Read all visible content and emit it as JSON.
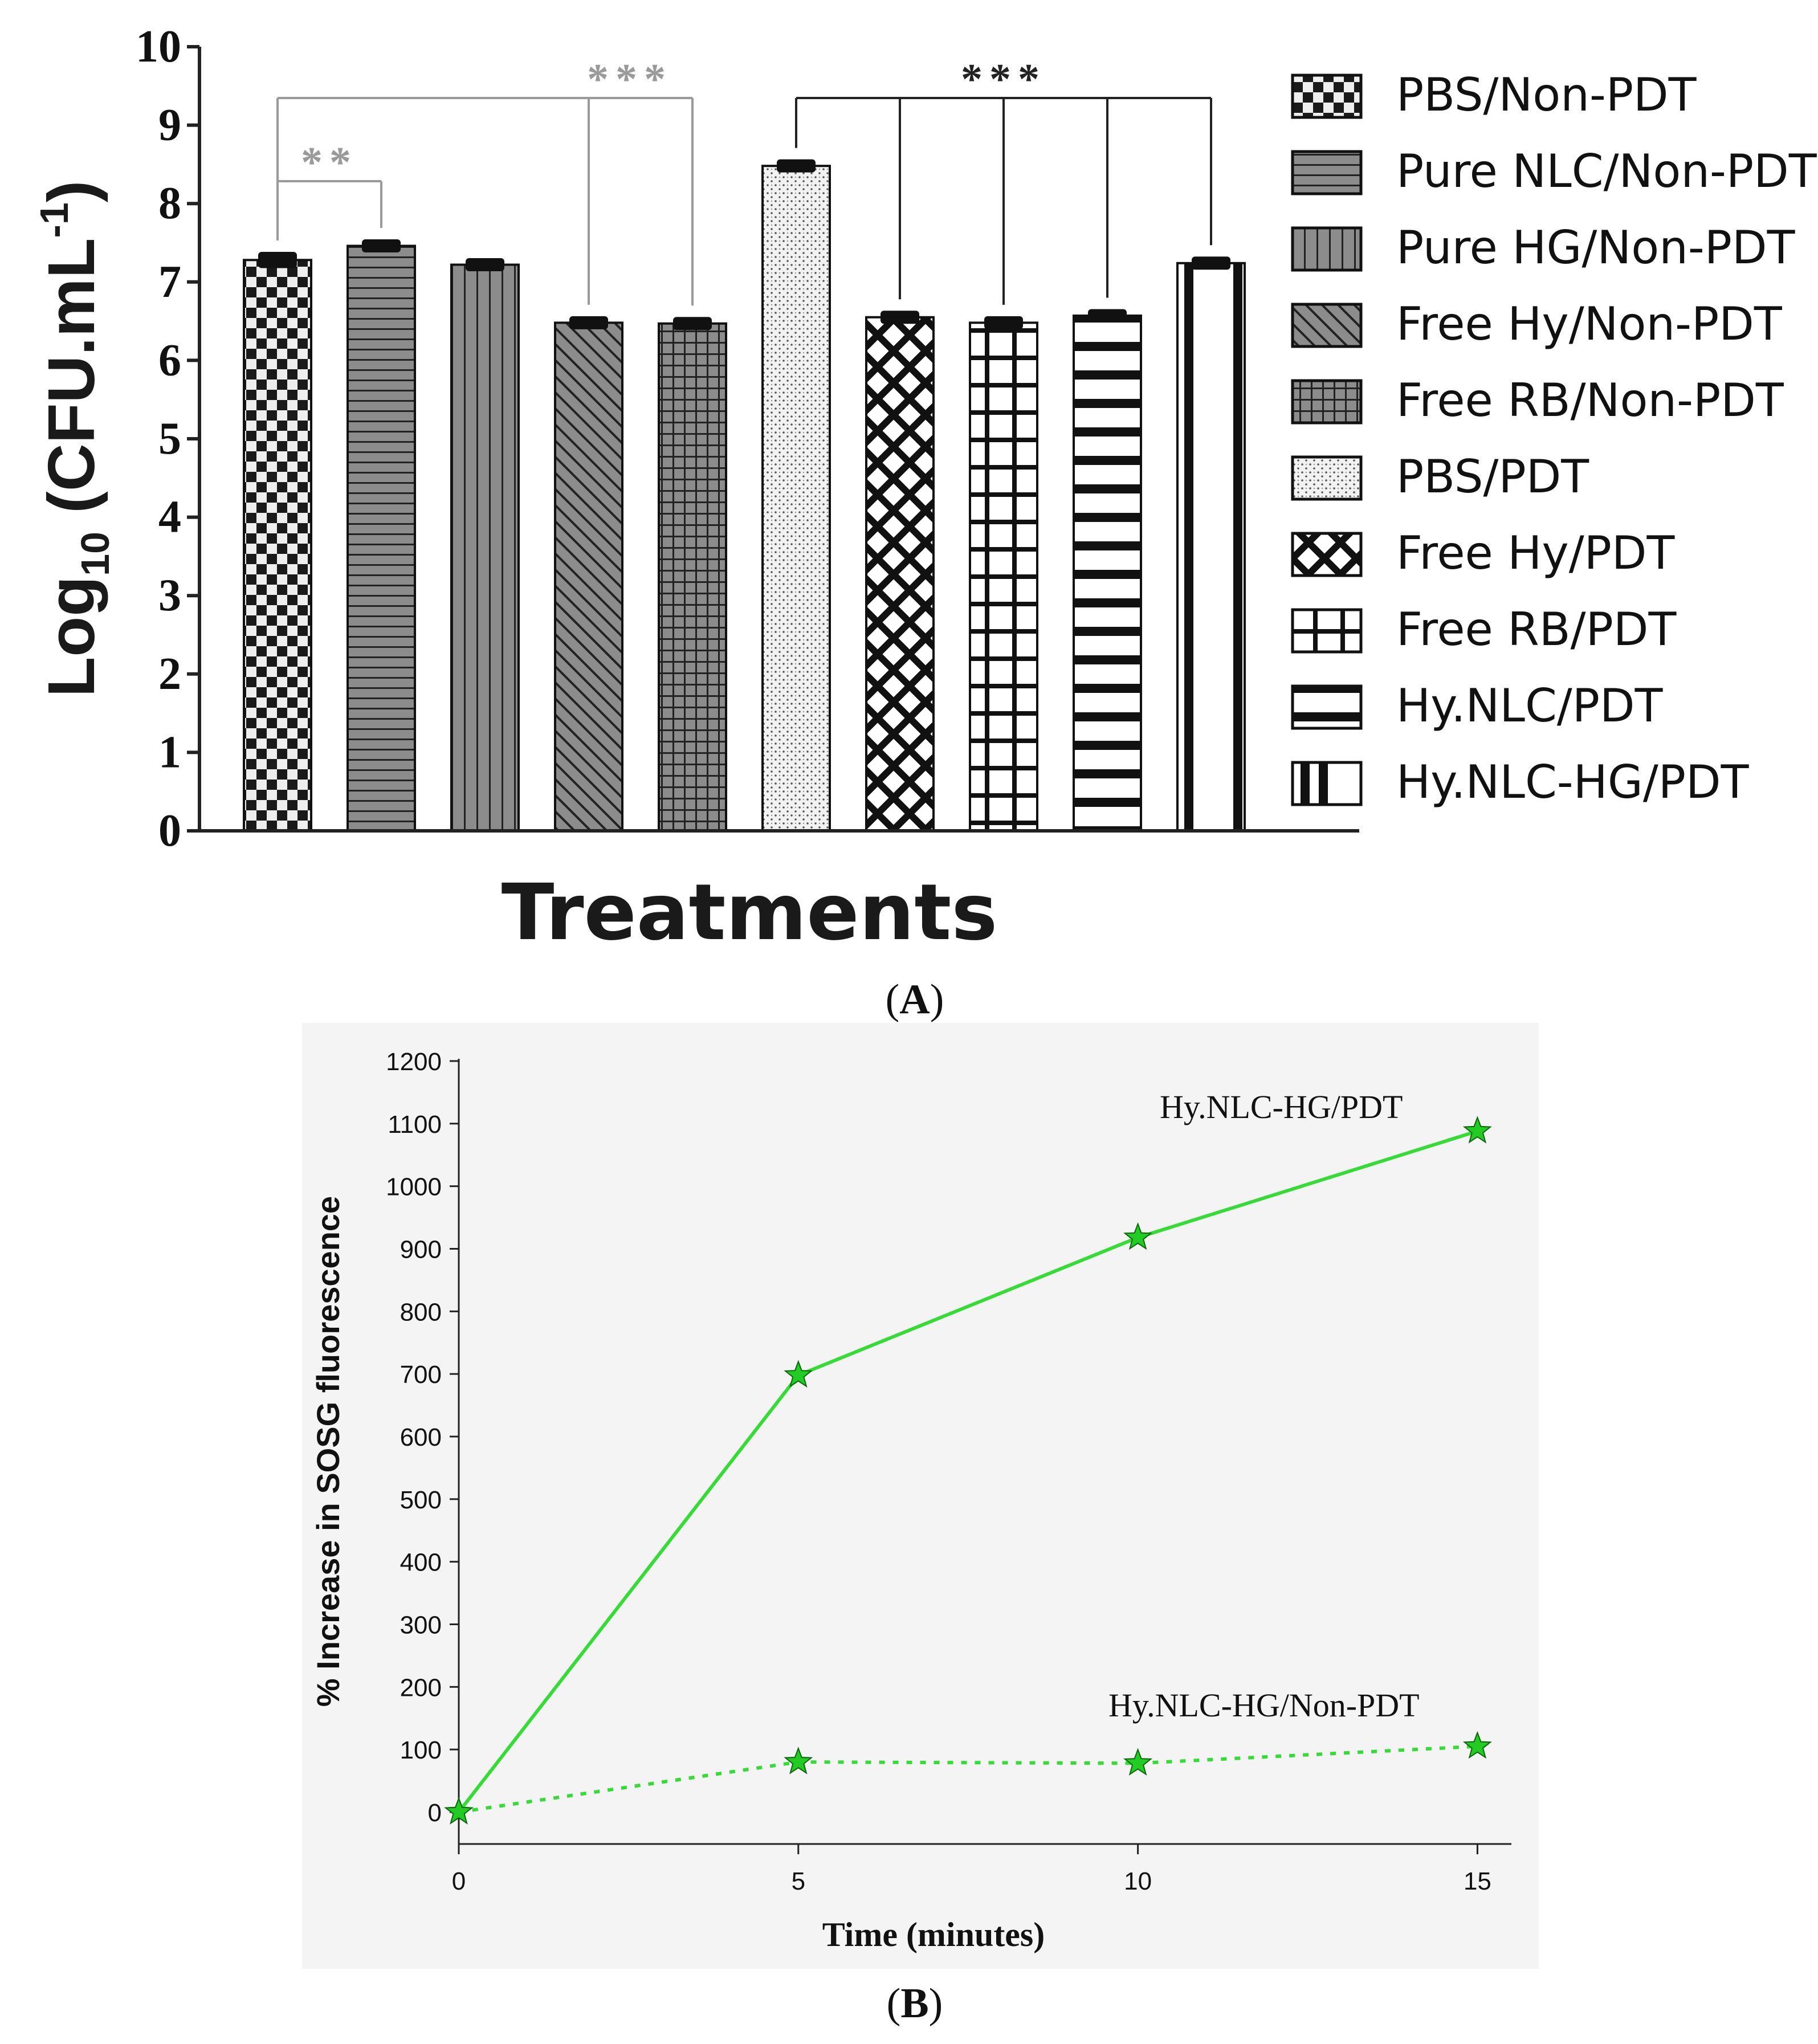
{
  "panels": {
    "a_label_open": "(",
    "a_label_letter": "A",
    "a_label_close": ")",
    "b_label_open": "(",
    "b_label_letter": "B",
    "b_label_close": ")"
  },
  "colors": {
    "bar_fill": "#8c8c8c",
    "bar_dark": "#1a1a1a",
    "significance_gray": "#9a9a9a",
    "significance_black": "#222222",
    "line_green": "#33dd33",
    "marker_green": "#22cc22",
    "panel_b_background": "#f4f4f4"
  },
  "chart_data": [
    {
      "type": "bar",
      "title": "",
      "xlabel": "Treatments",
      "ylabel_main": "Log",
      "ylabel_sub": "10",
      "ylabel_rest": " (CFU.mL",
      "ylabel_sup": "-1",
      "ylabel_end": ")",
      "ylim": [
        0,
        10
      ],
      "yticks": [
        "0",
        "1",
        "2",
        "3",
        "4",
        "5",
        "6",
        "7",
        "8",
        "9",
        "10"
      ],
      "categories": [
        "PBS/Non-PDT",
        "Pure NLC/Non-PDT",
        "Pure HG/Non-PDT",
        "Free Hy/Non-PDT",
        "Free RB/Non-PDT",
        "PBS/PDT",
        "Free Hy/PDT",
        "Free RB/PDT",
        "Hy.NLC/PDT",
        "Hy.NLC-HG/PDT"
      ],
      "values": [
        7.28,
        7.46,
        7.22,
        6.48,
        6.47,
        8.48,
        6.55,
        6.48,
        6.57,
        7.24
      ],
      "errors": [
        0.06,
        0.04,
        0.04,
        0.04,
        0.04,
        0.04,
        0.04,
        0.04,
        0.04,
        0.04
      ],
      "patterns": [
        "checker",
        "hlines",
        "vlines",
        "diag",
        "grid",
        "dots",
        "cross",
        "bigplus",
        "hstripes",
        "vstripes"
      ],
      "legend_position": "right",
      "significance": [
        {
          "label": "**",
          "from": 0,
          "to": [
            1
          ],
          "color": "gray"
        },
        {
          "label": "***",
          "from": 0,
          "to": [
            3,
            4
          ],
          "color": "gray"
        },
        {
          "label": "***",
          "from": 5,
          "to": [
            6,
            7,
            8,
            9
          ],
          "color": "black"
        }
      ]
    },
    {
      "type": "line",
      "title": "",
      "xlabel": "Time (minutes)",
      "ylabel": "% Increase in SOSG fluorescence",
      "x": [
        0,
        5,
        10,
        15
      ],
      "xlim": [
        0,
        15.5
      ],
      "ylim": [
        0,
        1200
      ],
      "xticks": [
        "0",
        "5",
        "10",
        "15"
      ],
      "yticks": [
        "0",
        "100",
        "200",
        "300",
        "400",
        "500",
        "600",
        "700",
        "800",
        "900",
        "1000",
        "1100",
        "1200"
      ],
      "series": [
        {
          "name": "Hy.NLC-HG/PDT",
          "values": [
            0,
            698,
            918,
            1088
          ],
          "style": "solid"
        },
        {
          "name": "Hy.NLC-HG/Non-PDT",
          "values": [
            0,
            80,
            78,
            105
          ],
          "style": "dotted"
        }
      ]
    }
  ]
}
